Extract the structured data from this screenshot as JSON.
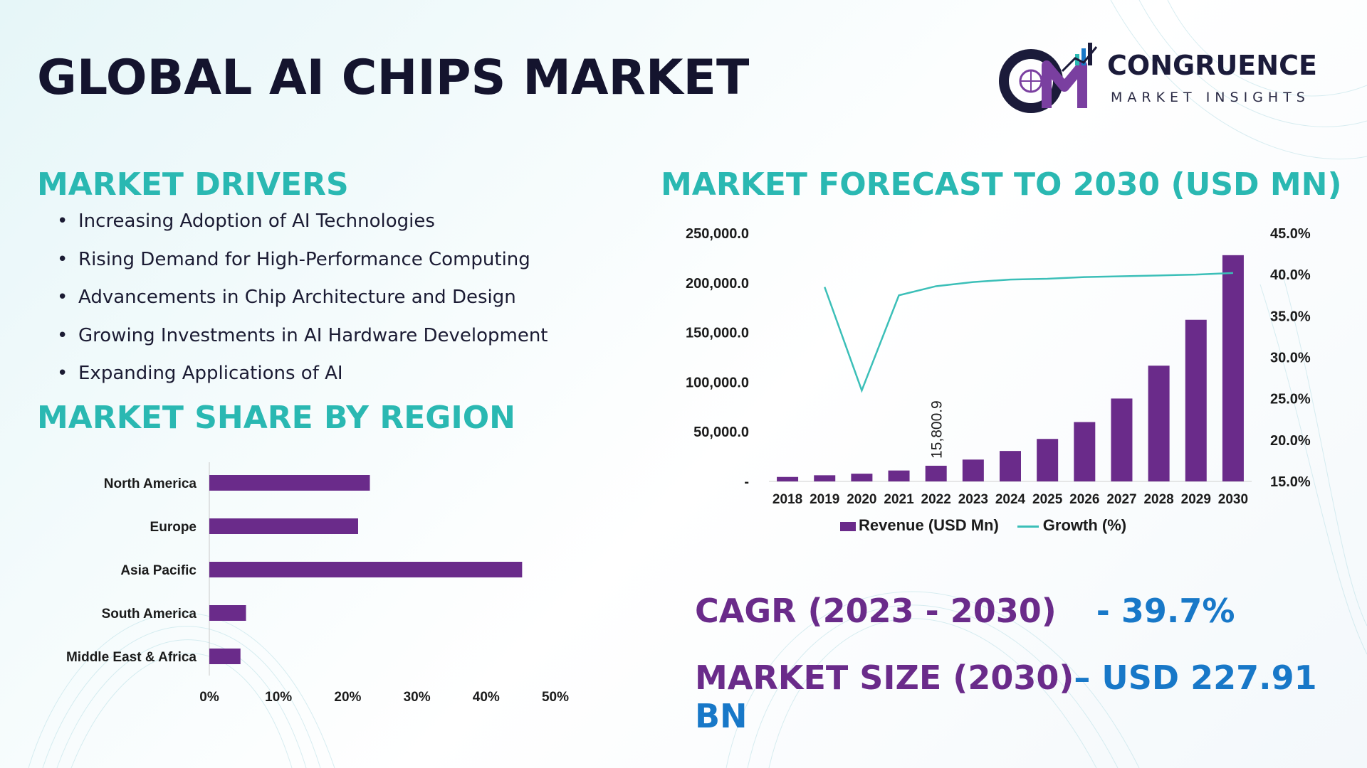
{
  "title": "GLOBAL AI CHIPS MARKET",
  "logo": {
    "name": "CONGRUENCE",
    "subtitle": "MARKET INSIGHTS"
  },
  "colors": {
    "accent_teal": "#2ab8b2",
    "bar_purple": "#6a2b8a",
    "line_teal": "#3bbfb8",
    "kpi_value_blue": "#1878c8",
    "title_dark": "#14142e"
  },
  "drivers": {
    "heading": "MARKET DRIVERS",
    "items": [
      "Increasing Adoption of AI Technologies",
      "Rising Demand for High-Performance Computing",
      "Advancements in Chip Architecture and Design",
      "Growing Investments in AI Hardware Development",
      "Expanding Applications of AI"
    ]
  },
  "region": {
    "heading": "MARKET SHARE BY REGION"
  },
  "forecast": {
    "heading": "MARKET FORECAST TO 2030 (USD MN)"
  },
  "kpis": {
    "cagr_label": "CAGR (2023 - 2030)",
    "cagr_value": "- 39.7%",
    "size_label": "MARKET SIZE (2030)",
    "size_value": "– USD 227.91 BN"
  },
  "chart_data": [
    {
      "type": "bar",
      "orientation": "horizontal",
      "categories": [
        "North America",
        "Europe",
        "Asia Pacific",
        "South America",
        "Middle East & Africa"
      ],
      "values": [
        23.2,
        21.5,
        45.2,
        5.3,
        4.5
      ],
      "unit": "%",
      "xlim": [
        0,
        50
      ],
      "xticks": [
        "0%",
        "10%",
        "20%",
        "30%",
        "40%",
        "50%"
      ],
      "grid": false
    },
    {
      "type": "bar+line",
      "categories": [
        "2018",
        "2019",
        "2020",
        "2021",
        "2022",
        "2023",
        "2024",
        "2025",
        "2026",
        "2027",
        "2028",
        "2029",
        "2030"
      ],
      "series": [
        {
          "name": "Revenue (USD Mn)",
          "type": "bar",
          "axis": "left",
          "values": [
            4500,
            6200,
            7800,
            11000,
            15800.9,
            22000,
            30700,
            42800,
            59800,
            83500,
            116600,
            162800,
            227910
          ]
        },
        {
          "name": "Growth (%)",
          "type": "line",
          "axis": "right",
          "values": [
            null,
            38.5,
            26.0,
            37.5,
            38.6,
            39.1,
            39.4,
            39.5,
            39.7,
            39.8,
            39.9,
            40.0,
            40.2
          ]
        }
      ],
      "data_labels": [
        {
          "category": "2022",
          "text": "15,800.9"
        }
      ],
      "ylim_left": [
        0,
        250000
      ],
      "yticks_left": [
        "-",
        "50,000.0",
        "100,000.0",
        "150,000.0",
        "200,000.0",
        "250,000.0"
      ],
      "ylim_right": [
        15,
        45
      ],
      "yticks_right": [
        "15.0%",
        "20.0%",
        "25.0%",
        "30.0%",
        "35.0%",
        "40.0%",
        "45.0%"
      ],
      "legend": "bottom",
      "grid": false
    }
  ]
}
